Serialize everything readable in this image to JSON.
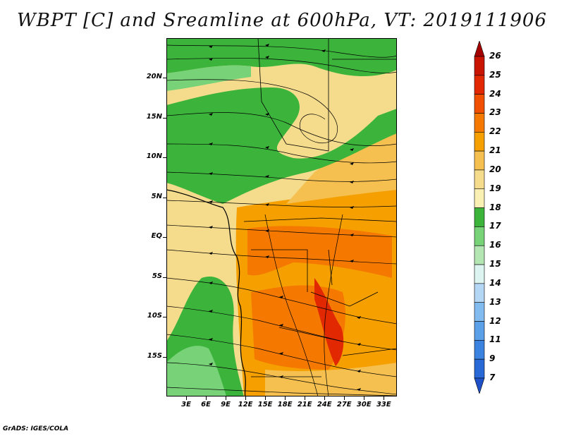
{
  "title": "WBPT [C] and Sreamline at 600hPa, VT: 2019111906",
  "footer": "GrADS: IGES/COLA",
  "map": {
    "lat_labels": [
      "20N",
      "15N",
      "10N",
      "5N",
      "EQ",
      "5S",
      "10S",
      "15S"
    ],
    "lat_values": [
      20,
      15,
      10,
      5,
      0,
      -5,
      -10,
      -15
    ],
    "lon_labels": [
      "3E",
      "6E",
      "9E",
      "12E",
      "15E",
      "18E",
      "21E",
      "24E",
      "27E",
      "30E",
      "33E"
    ],
    "lon_values": [
      3,
      6,
      9,
      12,
      15,
      18,
      21,
      24,
      27,
      30,
      33
    ],
    "lat_range": [
      -20,
      25
    ],
    "lon_range": [
      0,
      35
    ]
  },
  "colorbar": {
    "labels": [
      "26",
      "25",
      "24",
      "23",
      "22",
      "21",
      "20",
      "19",
      "18",
      "17",
      "16",
      "15",
      "14",
      "13",
      "12",
      "11",
      "9",
      "7"
    ],
    "colors": [
      "#a50000",
      "#c81400",
      "#e12800",
      "#f05000",
      "#f57800",
      "#f5a000",
      "#f5c050",
      "#f5dc8c",
      "#faf0b4",
      "#3cb43c",
      "#78d278",
      "#b4e6b4",
      "#dcf5f0",
      "#b4d7f5",
      "#82bbf0",
      "#5a9fe8",
      "#3c82e1",
      "#2869d7",
      "#1e50c8"
    ]
  }
}
